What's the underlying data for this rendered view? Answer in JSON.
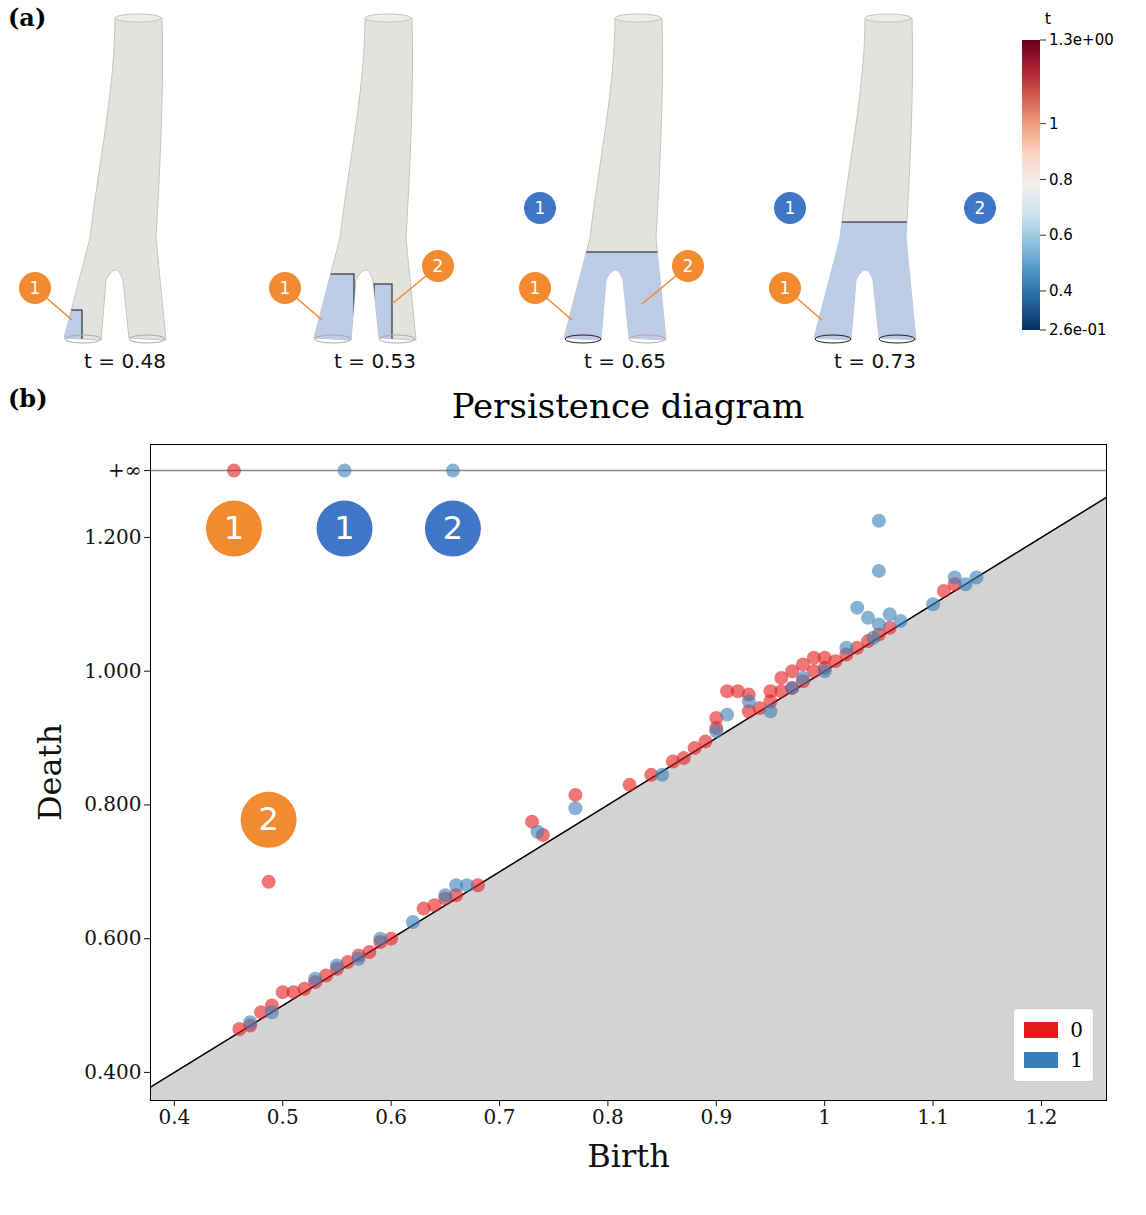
{
  "chart_data": [
    {
      "type": "render",
      "panel": "(a)",
      "frames": [
        {
          "label": "t = 0.48",
          "badges": [
            {
              "text": "1",
              "dim": "0",
              "color": "#f28a30"
            }
          ]
        },
        {
          "label": "t = 0.53",
          "badges": [
            {
              "text": "1",
              "dim": "0",
              "color": "#f28a30"
            },
            {
              "text": "2",
              "dim": "0",
              "color": "#f28a30"
            }
          ]
        },
        {
          "label": "t = 0.65",
          "badges": [
            {
              "text": "1",
              "dim": "1",
              "color": "#3f76c6"
            },
            {
              "text": "1",
              "dim": "0",
              "color": "#f28a30"
            },
            {
              "text": "2",
              "dim": "0",
              "color": "#f28a30"
            }
          ]
        },
        {
          "label": "t = 0.73",
          "badges": [
            {
              "text": "1",
              "dim": "1",
              "color": "#3f76c6"
            },
            {
              "text": "2",
              "dim": "1",
              "color": "#3f76c6"
            },
            {
              "text": "1",
              "dim": "0",
              "color": "#f28a30"
            }
          ]
        }
      ],
      "colorbar": {
        "title": "t",
        "range": [
          0.26,
          1.3
        ],
        "ticks": [
          {
            "value": 1.3,
            "label": "1.3e+00"
          },
          1,
          0.8,
          0.6,
          0.4,
          {
            "value": 0.26,
            "label": "2.6e-01"
          }
        ]
      }
    },
    {
      "type": "scatter",
      "panel": "(b)",
      "title": "Persistence diagram",
      "x_label": "Birth",
      "y_label": "Death",
      "xlim": [
        0.378,
        1.26
      ],
      "ylim": [
        0.358,
        1.339
      ],
      "xticks": [
        0.4,
        0.5,
        0.6,
        0.7,
        0.8,
        0.9,
        1.0,
        1.1,
        1.2
      ],
      "yticks": [
        {
          "value": 0.4,
          "label": "0.400"
        },
        {
          "value": 0.6,
          "label": "0.600"
        },
        {
          "value": 0.8,
          "label": "0.800"
        },
        {
          "value": 1.0,
          "label": "1.000"
        },
        {
          "value": 1.2,
          "label": "1.200"
        },
        {
          "value": 1.3,
          "label": "+∞"
        }
      ],
      "legend": "lower right",
      "series": [
        {
          "name": "0",
          "color": "#e41a1c",
          "badge_color": "#f28a30",
          "points": [
            [
              0.455,
              null
            ],
            [
              0.487,
              0.685
            ],
            [
              0.46,
              0.465
            ],
            [
              0.47,
              0.47
            ],
            [
              0.48,
              0.49
            ],
            [
              0.49,
              0.5
            ],
            [
              0.5,
              0.52
            ],
            [
              0.51,
              0.52
            ],
            [
              0.52,
              0.525
            ],
            [
              0.53,
              0.535
            ],
            [
              0.54,
              0.545
            ],
            [
              0.55,
              0.555
            ],
            [
              0.56,
              0.565
            ],
            [
              0.57,
              0.575
            ],
            [
              0.58,
              0.58
            ],
            [
              0.59,
              0.595
            ],
            [
              0.6,
              0.6
            ],
            [
              0.63,
              0.645
            ],
            [
              0.64,
              0.65
            ],
            [
              0.65,
              0.66
            ],
            [
              0.66,
              0.665
            ],
            [
              0.68,
              0.68
            ],
            [
              0.73,
              0.775
            ],
            [
              0.74,
              0.755
            ],
            [
              0.77,
              0.815
            ],
            [
              0.82,
              0.83
            ],
            [
              0.84,
              0.845
            ],
            [
              0.86,
              0.865
            ],
            [
              0.87,
              0.87
            ],
            [
              0.88,
              0.885
            ],
            [
              0.89,
              0.895
            ],
            [
              0.9,
              0.93
            ],
            [
              0.9,
              0.915
            ],
            [
              0.91,
              0.97
            ],
            [
              0.92,
              0.97
            ],
            [
              0.93,
              0.965
            ],
            [
              0.93,
              0.94
            ],
            [
              0.94,
              0.945
            ],
            [
              0.95,
              0.955
            ],
            [
              0.95,
              0.97
            ],
            [
              0.96,
              0.97
            ],
            [
              0.96,
              0.99
            ],
            [
              0.97,
              1.0
            ],
            [
              0.97,
              0.975
            ],
            [
              0.98,
              0.985
            ],
            [
              0.98,
              1.01
            ],
            [
              0.99,
              1.0
            ],
            [
              0.99,
              1.02
            ],
            [
              1.0,
              1.02
            ],
            [
              1.0,
              1.005
            ],
            [
              1.01,
              1.015
            ],
            [
              1.02,
              1.025
            ],
            [
              1.03,
              1.035
            ],
            [
              1.04,
              1.045
            ],
            [
              1.05,
              1.055
            ],
            [
              1.06,
              1.065
            ],
            [
              1.11,
              1.12
            ],
            [
              1.12,
              1.13
            ]
          ],
          "badges": [
            {
              "text": "1",
              "birth": 0.455,
              "death": null
            },
            {
              "text": "2",
              "birth": 0.487,
              "death": 0.685
            }
          ]
        },
        {
          "name": "1",
          "color": "#377eb8",
          "badge_color": "#3f76c6",
          "points": [
            [
              0.557,
              null
            ],
            [
              0.657,
              null
            ],
            [
              0.47,
              0.475
            ],
            [
              0.49,
              0.49
            ],
            [
              0.53,
              0.54
            ],
            [
              0.55,
              0.56
            ],
            [
              0.57,
              0.57
            ],
            [
              0.59,
              0.6
            ],
            [
              0.62,
              0.625
            ],
            [
              0.65,
              0.665
            ],
            [
              0.66,
              0.68
            ],
            [
              0.67,
              0.68
            ],
            [
              0.735,
              0.76
            ],
            [
              0.77,
              0.795
            ],
            [
              0.85,
              0.845
            ],
            [
              0.9,
              0.91
            ],
            [
              0.91,
              0.935
            ],
            [
              0.93,
              0.955
            ],
            [
              0.95,
              0.94
            ],
            [
              0.97,
              0.975
            ],
            [
              0.98,
              0.99
            ],
            [
              1.0,
              1.0
            ],
            [
              1.02,
              1.035
            ],
            [
              1.03,
              1.095
            ],
            [
              1.04,
              1.08
            ],
            [
              1.045,
              1.05
            ],
            [
              1.05,
              1.225
            ],
            [
              1.05,
              1.15
            ],
            [
              1.05,
              1.07
            ],
            [
              1.06,
              1.085
            ],
            [
              1.07,
              1.075
            ],
            [
              1.1,
              1.1
            ],
            [
              1.12,
              1.14
            ],
            [
              1.13,
              1.13
            ],
            [
              1.14,
              1.14
            ]
          ],
          "badges": [
            {
              "text": "1",
              "birth": 0.557,
              "death": null
            },
            {
              "text": "2",
              "birth": 0.657,
              "death": null
            }
          ]
        }
      ]
    }
  ]
}
